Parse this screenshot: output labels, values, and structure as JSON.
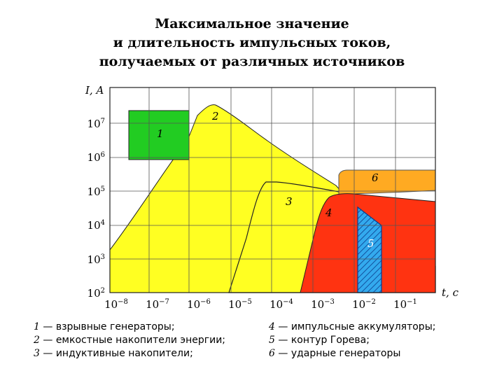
{
  "title_lines": [
    "Максимальное значение",
    "и длительность импульсных токов,",
    "получаемых от различных источников"
  ],
  "axes": {
    "ylabel": "I, A",
    "xlabel": "t, c",
    "y_ticks": [
      {
        "base": "10",
        "exp": "2"
      },
      {
        "base": "10",
        "exp": "3"
      },
      {
        "base": "10",
        "exp": "4"
      },
      {
        "base": "10",
        "exp": "5"
      },
      {
        "base": "10",
        "exp": "6"
      },
      {
        "base": "10",
        "exp": "7"
      }
    ],
    "x_ticks": [
      {
        "base": "10",
        "exp": "−8"
      },
      {
        "base": "10",
        "exp": "−7"
      },
      {
        "base": "10",
        "exp": "−6"
      },
      {
        "base": "10",
        "exp": "−5"
      },
      {
        "base": "10",
        "exp": "−4"
      },
      {
        "base": "10",
        "exp": "−3"
      },
      {
        "base": "10",
        "exp": "−2"
      },
      {
        "base": "10",
        "exp": "−1"
      }
    ]
  },
  "regions": [
    {
      "id": "1",
      "label": "1",
      "color": "#22cc22"
    },
    {
      "id": "2",
      "label": "2",
      "color": "#ffff22"
    },
    {
      "id": "3",
      "label": "3",
      "color": "#ffff22"
    },
    {
      "id": "4",
      "label": "4",
      "color": "#ff3311"
    },
    {
      "id": "5",
      "label": "5",
      "color": "#33aaee"
    },
    {
      "id": "6",
      "label": "6",
      "color": "#ffaa22"
    }
  ],
  "legend": {
    "left": [
      {
        "num": "1",
        "text": " — взрывные генераторы;"
      },
      {
        "num": "2",
        "text": " — емкостные накопители энергии;"
      },
      {
        "num": "3",
        "text": " — индуктивные накопители;"
      }
    ],
    "right": [
      {
        "num": "4",
        "text": " — импульсные аккумуляторы;"
      },
      {
        "num": "5",
        "text": " — контур Горева;"
      },
      {
        "num": "6",
        "text": " — ударные генераторы"
      }
    ]
  }
}
